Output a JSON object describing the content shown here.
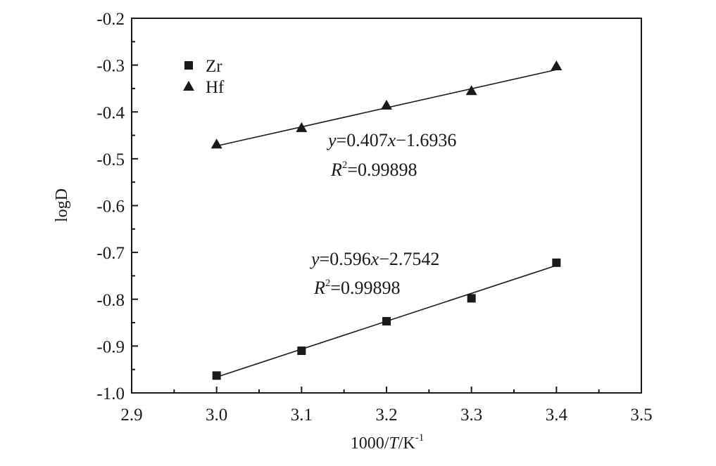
{
  "chart_data": {
    "type": "scatter",
    "xlabel": "1000/T/K⁻¹",
    "xlabel_parts": {
      "a": "1000/",
      "b": "T",
      "c": "/K",
      "sup": "-1"
    },
    "ylabel": "logD",
    "xlim": [
      2.9,
      3.5
    ],
    "ylim": [
      -1.0,
      -0.2
    ],
    "xticks": [
      2.9,
      3.0,
      3.1,
      3.2,
      3.3,
      3.4,
      3.5
    ],
    "xtick_labels": [
      "2.9",
      "3.0",
      "3.1",
      "3.2",
      "3.3",
      "3.4",
      "3.5"
    ],
    "yticks": [
      -0.2,
      -0.3,
      -0.4,
      -0.5,
      -0.6,
      -0.7,
      -0.8,
      -0.9,
      -1.0
    ],
    "ytick_labels": [
      "-0.2",
      "-0.3",
      "-0.4",
      "-0.5",
      "-0.6",
      "-0.7",
      "-0.8",
      "-0.9",
      "-1.0"
    ],
    "grid": false,
    "legend_position": "top-left",
    "series": [
      {
        "name": "Zr",
        "marker": "square",
        "x": [
          3.0,
          3.1,
          3.2,
          3.3,
          3.4
        ],
        "y": [
          -0.963,
          -0.91,
          -0.847,
          -0.798,
          -0.722
        ],
        "fit": {
          "slope": 0.596,
          "intercept": -2.7542,
          "x_range": [
            3.0,
            3.4
          ]
        },
        "equation": {
          "y": "y",
          "eq": "=0.596",
          "x": "x",
          "rest": "−2.7542",
          "r": "R",
          "sup": "2",
          "rval": "=0.99898"
        }
      },
      {
        "name": "Hf",
        "marker": "triangle",
        "x": [
          3.0,
          3.1,
          3.2,
          3.3,
          3.4
        ],
        "y": [
          -0.469,
          -0.434,
          -0.386,
          -0.355,
          -0.302
        ],
        "fit": {
          "slope": 0.407,
          "intercept": -1.6936,
          "x_range": [
            3.0,
            3.4
          ]
        },
        "equation": {
          "y": "y",
          "eq": "=0.407",
          "x": "x",
          "rest": "−1.6936",
          "r": "R",
          "sup": "2",
          "rval": "=0.99898"
        }
      }
    ]
  }
}
